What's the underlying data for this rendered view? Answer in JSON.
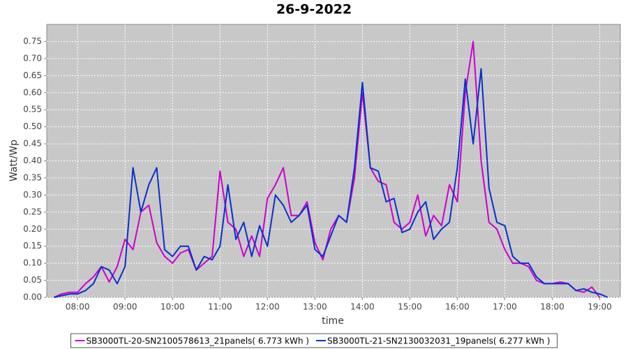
{
  "chart_data": {
    "type": "line",
    "title": "26-9-2022",
    "x_label": "time",
    "y_label": "Watt/Wp",
    "x": [
      450,
      460,
      470,
      480,
      490,
      500,
      510,
      520,
      530,
      540,
      550,
      560,
      570,
      580,
      590,
      600,
      610,
      620,
      630,
      640,
      650,
      660,
      670,
      680,
      690,
      700,
      710,
      720,
      730,
      740,
      750,
      760,
      770,
      780,
      790,
      800,
      810,
      820,
      830,
      840,
      850,
      860,
      870,
      880,
      890,
      900,
      910,
      920,
      930,
      940,
      950,
      960,
      970,
      980,
      990,
      1000,
      1010,
      1020,
      1030,
      1040,
      1050,
      1060,
      1070,
      1080,
      1090,
      1100,
      1110,
      1120,
      1130,
      1140,
      1150
    ],
    "series": [
      {
        "name": "SB3000TL-20-SN2100578613_21panels( 6.773 kWh )",
        "color": "#cc00cc",
        "values": [
          0.0,
          0.01,
          0.015,
          0.015,
          0.04,
          0.06,
          0.09,
          0.045,
          0.09,
          0.17,
          0.14,
          0.25,
          0.27,
          0.16,
          0.12,
          0.1,
          0.13,
          0.14,
          0.08,
          0.1,
          0.12,
          0.37,
          0.22,
          0.2,
          0.12,
          0.18,
          0.12,
          0.29,
          0.33,
          0.38,
          0.24,
          0.24,
          0.28,
          0.16,
          0.11,
          0.2,
          0.24,
          0.22,
          0.35,
          0.6,
          0.38,
          0.34,
          0.33,
          0.22,
          0.2,
          0.22,
          0.3,
          0.18,
          0.24,
          0.21,
          0.33,
          0.28,
          0.6,
          0.75,
          0.4,
          0.22,
          0.2,
          0.14,
          0.1,
          0.1,
          0.09,
          0.05,
          0.04,
          0.04,
          0.045,
          0.04,
          0.02,
          0.015,
          0.03,
          0.0,
          null
        ]
      },
      {
        "name": "SB3000TL-21-SN2130032031_19panels( 6.277 kWh )",
        "color": "#0a2fcc",
        "values": [
          0.0,
          0.005,
          0.01,
          0.01,
          0.02,
          0.04,
          0.09,
          0.08,
          0.04,
          0.09,
          0.38,
          0.25,
          0.33,
          0.38,
          0.14,
          0.12,
          0.15,
          0.15,
          0.08,
          0.12,
          0.11,
          0.15,
          0.33,
          0.17,
          0.22,
          0.12,
          0.21,
          0.15,
          0.3,
          0.27,
          0.22,
          0.24,
          0.27,
          0.14,
          0.12,
          0.18,
          0.24,
          0.22,
          0.38,
          0.63,
          0.38,
          0.37,
          0.28,
          0.29,
          0.19,
          0.2,
          0.25,
          0.28,
          0.17,
          0.2,
          0.22,
          0.38,
          0.64,
          0.45,
          0.67,
          0.32,
          0.22,
          0.21,
          0.12,
          0.1,
          0.1,
          0.06,
          0.04,
          0.04,
          0.04,
          0.04,
          0.02,
          0.025,
          0.015,
          0.01,
          0.0
        ]
      }
    ],
    "xlim": [
      441,
      1166
    ],
    "xticks": [
      {
        "value": 480,
        "label": "08:00"
      },
      {
        "value": 540,
        "label": "09:00"
      },
      {
        "value": 600,
        "label": "10:00"
      },
      {
        "value": 660,
        "label": "11:00"
      },
      {
        "value": 720,
        "label": "12:00"
      },
      {
        "value": 780,
        "label": "13:00"
      },
      {
        "value": 840,
        "label": "14:00"
      },
      {
        "value": 900,
        "label": "15:00"
      },
      {
        "value": 960,
        "label": "16:00"
      },
      {
        "value": 1020,
        "label": "17:00"
      },
      {
        "value": 1080,
        "label": "18:00"
      },
      {
        "value": 1140,
        "label": "19:00"
      }
    ],
    "ylim": [
      0,
      0.8
    ],
    "yticks": [
      {
        "value": 0,
        "label": "0.00"
      },
      {
        "value": 0.05,
        "label": "0.05"
      },
      {
        "value": 0.1,
        "label": "0.10"
      },
      {
        "value": 0.15,
        "label": "0.15"
      },
      {
        "value": 0.2,
        "label": "0.20"
      },
      {
        "value": 0.25,
        "label": "0.25"
      },
      {
        "value": 0.3,
        "label": "0.30"
      },
      {
        "value": 0.35,
        "label": "0.35"
      },
      {
        "value": 0.4,
        "label": "0.40"
      },
      {
        "value": 0.45,
        "label": "0.45"
      },
      {
        "value": 0.5,
        "label": "0.50"
      },
      {
        "value": 0.55,
        "label": "0.55"
      },
      {
        "value": 0.6,
        "label": "0.60"
      },
      {
        "value": 0.65,
        "label": "0.65"
      },
      {
        "value": 0.7,
        "label": "0.70"
      },
      {
        "value": 0.75,
        "label": "0.75"
      }
    ],
    "grid": true,
    "legend": "bottom"
  }
}
